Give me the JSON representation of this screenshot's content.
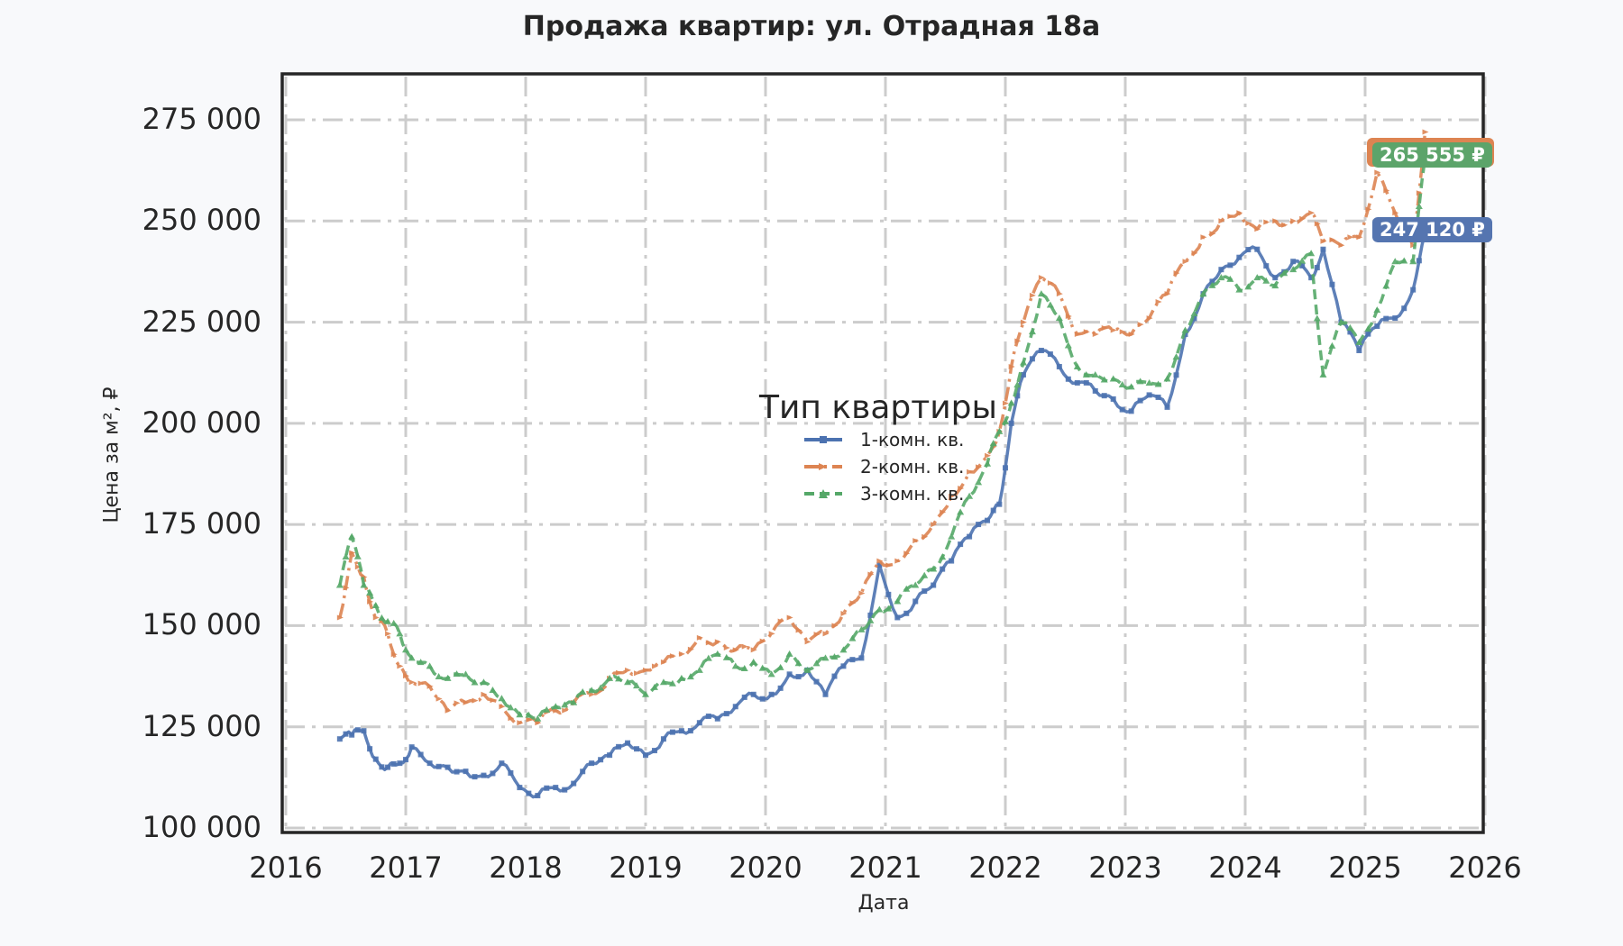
{
  "title": "Продажа квартир: ул. Отрадная 18а",
  "chart_data": {
    "type": "line",
    "title": "Продажа квартир: ул. Отрадная 18а",
    "xlabel": "Дата",
    "ylabel": "Цена за м², ₽",
    "xlim": [
      2016,
      2026
    ],
    "ylim": [
      100000,
      275000
    ],
    "x_ticks": [
      "2016",
      "2017",
      "2018",
      "2019",
      "2020",
      "2021",
      "2022",
      "2023",
      "2024",
      "2025",
      "2026"
    ],
    "y_ticks": [
      "100 000",
      "125 000",
      "150 000",
      "175 000",
      "200 000",
      "225 000",
      "250 000",
      "275 000"
    ],
    "grid": true,
    "legend": {
      "title": "Тип квартиры",
      "position": "center"
    },
    "x": [
      2016.45,
      2016.55,
      2016.65,
      2016.75,
      2016.85,
      2016.95,
      2017.05,
      2017.2,
      2017.35,
      2017.5,
      2017.65,
      2017.8,
      2017.95,
      2018.1,
      2018.25,
      2018.4,
      2018.55,
      2018.7,
      2018.85,
      2019.0,
      2019.15,
      2019.3,
      2019.45,
      2019.6,
      2019.75,
      2019.9,
      2020.05,
      2020.2,
      2020.35,
      2020.5,
      2020.65,
      2020.8,
      2020.95,
      2021.1,
      2021.25,
      2021.4,
      2021.55,
      2021.7,
      2021.85,
      2021.95,
      2022.05,
      2022.15,
      2022.3,
      2022.45,
      2022.6,
      2022.75,
      2022.9,
      2023.05,
      2023.2,
      2023.35,
      2023.5,
      2023.65,
      2023.8,
      2023.95,
      2024.1,
      2024.25,
      2024.4,
      2024.55,
      2024.65,
      2024.8,
      2024.95,
      2025.1,
      2025.25,
      2025.4,
      2025.5
    ],
    "series": [
      {
        "name": "1-комн. кв.",
        "color": "#4c72b0",
        "style": "solid",
        "marker": "square",
        "values": [
          122000,
          123000,
          124000,
          117000,
          115000,
          116000,
          120000,
          116000,
          115000,
          114000,
          113000,
          116000,
          110000,
          108000,
          110000,
          111000,
          116000,
          118000,
          121000,
          118000,
          122000,
          124000,
          126000,
          127000,
          130000,
          133000,
          133000,
          138000,
          139000,
          133000,
          140000,
          142000,
          165000,
          152000,
          156000,
          160000,
          166000,
          172000,
          176000,
          180000,
          200000,
          212000,
          218000,
          214000,
          210000,
          208000,
          206000,
          203000,
          207000,
          204000,
          222000,
          232000,
          238000,
          241000,
          243000,
          236000,
          240000,
          236000,
          243000,
          225000,
          218000,
          224000,
          226000,
          233000,
          247120
        ]
      },
      {
        "name": "2-комн. кв.",
        "color": "#dd8452",
        "style": "dashdot",
        "marker": "arrow",
        "values": [
          152000,
          168000,
          162000,
          152000,
          148000,
          140000,
          136000,
          135000,
          129000,
          131000,
          133000,
          130000,
          126000,
          126000,
          129000,
          131000,
          133000,
          137000,
          139000,
          139000,
          141000,
          143000,
          147000,
          146000,
          144000,
          144000,
          148000,
          152000,
          146000,
          148000,
          153000,
          158000,
          166000,
          166000,
          171000,
          175000,
          182000,
          188000,
          192000,
          198000,
          214000,
          225000,
          236000,
          232000,
          222000,
          222000,
          223000,
          222000,
          226000,
          232000,
          240000,
          246000,
          250000,
          252000,
          248000,
          250000,
          250000,
          252000,
          245000,
          244000,
          246000,
          262000,
          252000,
          244000,
          272000
        ]
      },
      {
        "name": "3-комн. кв.",
        "color": "#55a868",
        "style": "dashed",
        "marker": "triangle",
        "values": [
          160000,
          172000,
          160000,
          155000,
          151000,
          148000,
          142000,
          140000,
          137000,
          138000,
          136000,
          132000,
          128000,
          127000,
          130000,
          131000,
          134000,
          137000,
          136000,
          133000,
          136000,
          137000,
          139000,
          143000,
          140000,
          141000,
          138000,
          143000,
          139000,
          142000,
          144000,
          149000,
          154000,
          156000,
          160000,
          164000,
          172000,
          182000,
          190000,
          198000,
          205000,
          215000,
          232000,
          226000,
          214000,
          212000,
          211000,
          209000,
          210000,
          211000,
          223000,
          232000,
          236000,
          233000,
          236000,
          234000,
          238000,
          242000,
          212000,
          225000,
          220000,
          228000,
          240000,
          240000,
          265555
        ]
      }
    ],
    "annotations": [
      {
        "text": "265 555 ₽",
        "series": "3-комн. кв.",
        "bg": "#55a868",
        "border": "#dd8452"
      },
      {
        "text": "247 120 ₽",
        "series": "1-комн. кв.",
        "bg": "#4c72b0"
      }
    ]
  },
  "legend": {
    "title": "Тип квартиры",
    "items": [
      "1-комн. кв.",
      "2-комн. кв.",
      "3-комн. кв."
    ]
  },
  "axis": {
    "xlabel": "Дата",
    "ylabel": "Цена за м², ₽",
    "yticks": [
      "100 000",
      "125 000",
      "150 000",
      "175 000",
      "200 000",
      "225 000",
      "250 000",
      "275 000"
    ],
    "xticks": [
      "2016",
      "2017",
      "2018",
      "2019",
      "2020",
      "2021",
      "2022",
      "2023",
      "2024",
      "2025",
      "2026"
    ]
  },
  "badges": {
    "green": "265 555 ₽",
    "blue": "247 120 ₽"
  }
}
